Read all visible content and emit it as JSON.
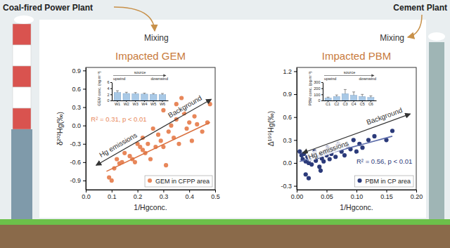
{
  "diagram": {
    "sources": [
      "Coal-fired Power Plant",
      "Cement Plant"
    ],
    "process": [
      "Mixing",
      "Mixing"
    ]
  },
  "chart_data": [
    {
      "type": "scatter",
      "title": "Impacted GEM",
      "xlabel": "1/Hgconc.",
      "ylabel": "δ²⁰²Hg(‰)",
      "xlim": [
        0,
        0.5
      ],
      "xticks": [
        {
          "value": 0,
          "label": "0.0"
        },
        0.1,
        0.2,
        0.3,
        0.4,
        0.5
      ],
      "ylim": [
        -1.05,
        0.95
      ],
      "yticks": [
        -0.9,
        -0.6,
        -0.3,
        {
          "value": 0,
          "label": "0.0"
        },
        0.3,
        0.6,
        0.9
      ],
      "legend": "lower right",
      "annotations": [
        "R² = 0.31, p < 0.01",
        "Background",
        "Hg emissions"
      ],
      "series": [
        {
          "name": "GEM in CFPP area",
          "type": "scatter",
          "marker": "circle",
          "color": "#e8875a",
          "x": [
            0.09,
            0.1,
            0.11,
            0.12,
            0.13,
            0.14,
            0.15,
            0.16,
            0.17,
            0.18,
            0.19,
            0.2,
            0.21,
            0.22,
            0.22,
            0.23,
            0.24,
            0.25,
            0.26,
            0.27,
            0.28,
            0.29,
            0.3,
            0.31,
            0.32,
            0.33,
            0.34,
            0.35,
            0.36,
            0.37,
            0.38,
            0.39,
            0.4,
            0.41,
            0.42,
            0.43,
            0.45,
            0.47,
            0.48,
            0.3,
            0.35
          ],
          "values": [
            -0.85,
            -0.9,
            -0.7,
            -0.55,
            -0.62,
            -0.6,
            -0.45,
            -0.25,
            -0.5,
            -0.55,
            -0.6,
            -0.3,
            -0.35,
            -0.2,
            -0.4,
            -0.45,
            -0.3,
            -0.55,
            -0.05,
            -0.35,
            -0.15,
            -0.25,
            -0.35,
            -0.65,
            -0.1,
            0,
            -0.2,
            0.1,
            -0.3,
            0.45,
            0.2,
            -0.05,
            0.05,
            -0.25,
            0.15,
            0.02,
            -0.1,
            0.05,
            0.35,
            0.25,
            0.35
          ]
        },
        {
          "type": "line",
          "color": "#d9703f",
          "x": [
            0.08,
            0.48
          ],
          "values": [
            -0.75,
            0.05
          ]
        }
      ]
    },
    {
      "type": "bar",
      "ylabel": "GEM conc. (ng m⁻³)",
      "categories": [
        "W1",
        "W2",
        "W3",
        "W4",
        "W5",
        "W6"
      ],
      "values": [
        2.6,
        2.3,
        2.2,
        2.1,
        2.0,
        1.9
      ],
      "errors": [
        0.6,
        0.4,
        0.4,
        0.3,
        0.3,
        0.4
      ],
      "ylim": [
        0,
        6
      ],
      "yticks": [
        0,
        2,
        4,
        6
      ],
      "color": "#a9c9e6",
      "annotations": [
        "source",
        "upwind",
        "downwind"
      ]
    },
    {
      "type": "scatter",
      "title": "Impacted PBM",
      "xlabel": "1/Hgconc.",
      "ylabel": "Δ¹⁹⁹Hg(‰)",
      "xlim": [
        0,
        0.2
      ],
      "xticks": [
        {
          "value": 0,
          "label": "0.00"
        },
        0.05,
        {
          "value": 0.1,
          "label": "0.10"
        },
        0.15,
        {
          "value": 0.2,
          "label": "0.20"
        }
      ],
      "ylim": [
        -0.35,
        1.25
      ],
      "yticks": [
        -0.3,
        {
          "value": 0,
          "label": "0.0"
        },
        0.3,
        0.6,
        0.9,
        1.2
      ],
      "legend": "lower right",
      "annotations": [
        "R² = 0.56, p < 0.01",
        "Background",
        "Hg emissions"
      ],
      "series": [
        {
          "name": "PBM in CP area",
          "type": "scatter",
          "marker": "circle",
          "color": "#2b3a7a",
          "x": [
            0.005,
            0.008,
            0.01,
            0.012,
            0.015,
            0.018,
            0.02,
            0.022,
            0.025,
            0.028,
            0.03,
            0.032,
            0.035,
            0.038,
            0.04,
            0.042,
            0.045,
            0.048,
            0.05,
            0.052,
            0.055,
            0.058,
            0.06,
            0.065,
            0.07,
            0.075,
            0.08,
            0.085,
            0.09,
            0.095,
            0.1,
            0.105,
            0.11,
            0.12,
            0.13,
            0.15,
            0.16,
            0.015,
            0.02,
            0.04
          ],
          "values": [
            0.15,
            0.1,
            0.05,
            0.12,
            0.02,
            0.08,
            0,
            0.05,
            -0.02,
            0.1,
            0.15,
            0.03,
            0.08,
            -0.05,
            0.12,
            0.06,
            0.02,
            0.15,
            0.1,
            0.2,
            0.05,
            0.12,
            0.18,
            0.08,
            0.25,
            0.15,
            0.1,
            0.22,
            0.18,
            0.3,
            0.15,
            0.25,
            0.2,
            0.3,
            0.35,
            0.3,
            0.42,
            -0.15,
            -0.2,
            -0.1
          ]
        },
        {
          "type": "line",
          "color": "#5a6aa8",
          "x": [
            0.005,
            0.16
          ],
          "values": [
            0.02,
            0.35
          ]
        }
      ]
    },
    {
      "type": "bar",
      "ylabel": "PBM conc. (pg m⁻³)",
      "categories": [
        "C1",
        "C2",
        "C3",
        "C4",
        "C5",
        "C6"
      ],
      "values": [
        40,
        65,
        110,
        85,
        65,
        50
      ],
      "errors": [
        15,
        25,
        70,
        55,
        35,
        25
      ],
      "ylim": [
        0,
        300
      ],
      "yticks": [
        0,
        100,
        200,
        300
      ],
      "color": "#a9c9e6",
      "annotations": [
        "source",
        "upwind",
        "downwind"
      ]
    }
  ]
}
